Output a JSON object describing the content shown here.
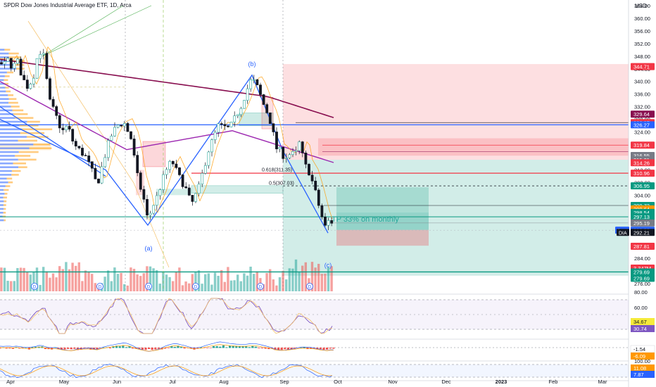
{
  "header": {
    "title": "SPDR Dow Jones Industrial Average ETF, 1D, Arca",
    "currency": "USD"
  },
  "chart_data": [
    {
      "type": "candlestick",
      "title": "SPDR Dow Jones Industrial Average ETF, 1D, Arca",
      "xlabel": "",
      "ylabel": "USD",
      "ylim": [
        274,
        364
      ],
      "x_ticks": [
        "Apr",
        "May",
        "Jun",
        "Jul",
        "Aug",
        "Sep",
        "Oct",
        "Nov",
        "Dec",
        "2023",
        "Feb",
        "Mar"
      ],
      "y_ticks": [
        276,
        280,
        284,
        288,
        292,
        296,
        300,
        304,
        308,
        312,
        316,
        320,
        324,
        328,
        332,
        336,
        340,
        344,
        348,
        352,
        356,
        360,
        364
      ],
      "wave_labels": [
        "(b)",
        "(a)",
        "(c)"
      ],
      "fib_labels": [
        "0.618(311.35)",
        "0.5(307.03)"
      ],
      "annotation": "TP 33% on monthly",
      "price_tags": [
        {
          "label": "344.71",
          "color": "#f23645"
        },
        {
          "label": "329.64",
          "color": "#880e4f"
        },
        {
          "label": "326.97",
          "color": "#f23645"
        },
        {
          "label": "326.27",
          "color": "#2962ff"
        },
        {
          "label": "319.84",
          "color": "#f23645"
        },
        {
          "label": "316.55",
          "color": "#787b86"
        },
        {
          "label": "315.21",
          "color": "#787b86"
        },
        {
          "label": "314.26",
          "color": "#f23645"
        },
        {
          "label": "310.96",
          "color": "#f23645"
        },
        {
          "label": "306.95",
          "color": "#089981"
        },
        {
          "label": "300.73",
          "color": "#089981"
        },
        {
          "label": "299.64",
          "color": "#ff9800"
        },
        {
          "label": "298.54",
          "color": "#089981"
        },
        {
          "label": "297.13",
          "color": "#089981"
        },
        {
          "label": "295.19",
          "color": "#787b86"
        },
        {
          "label": "292.90",
          "color": "#2962ff"
        },
        {
          "label": "292.21",
          "color": "#131722"
        },
        {
          "label": "287.81",
          "color": "#f23645"
        },
        {
          "label": "3.347M",
          "color": "#f23645"
        },
        {
          "label": "279.69",
          "color": "#089981"
        },
        {
          "label": "279.69",
          "color": "#089981"
        }
      ],
      "badges": {
        "post": "Post",
        "ticker": "DIA"
      },
      "dividend_marker": "D",
      "legend": "none",
      "grid": false
    },
    {
      "type": "line",
      "title": "RSI",
      "y_ticks": [
        "80.00",
        "60.00"
      ],
      "price_tags": [
        {
          "label": "34.67",
          "color": "#f5eb3b"
        },
        {
          "label": "30.74",
          "color": "#7e57c2"
        }
      ]
    },
    {
      "type": "bar",
      "title": "MACD",
      "price_tags": [
        {
          "label": "-1.54",
          "color": "#ffffff"
        },
        {
          "label": "-6.09",
          "color": "#ff9800"
        }
      ]
    },
    {
      "type": "line",
      "title": "Stochastic",
      "y_ticks": [
        "100.00"
      ],
      "price_tags": [
        {
          "label": "11.08",
          "color": "#ff9800"
        },
        {
          "label": "7.87",
          "color": "#2962ff"
        }
      ]
    }
  ]
}
